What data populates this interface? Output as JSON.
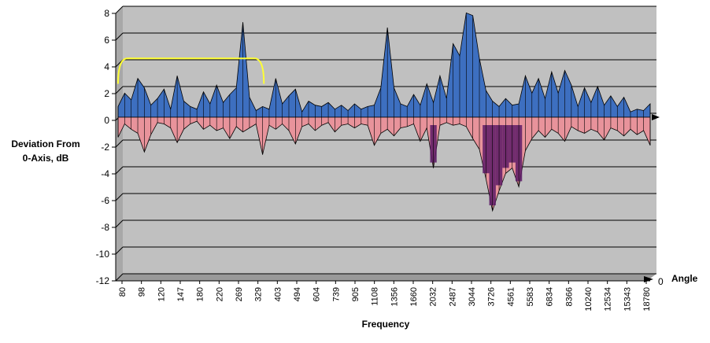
{
  "chart_data": {
    "type": "area",
    "title": "",
    "xlabel": "Frequency",
    "ylabel_lines": [
      "Deviation From",
      "0-Axis, dB"
    ],
    "zlabel": "Angle",
    "z_tick": "0",
    "ylim": [
      -12,
      8
    ],
    "y_ticks": [
      8,
      6,
      4,
      2,
      0,
      -2,
      -4,
      -6,
      -8,
      -10,
      -12
    ],
    "x_tick_labels": [
      "80",
      "98",
      "120",
      "147",
      "180",
      "220",
      "269",
      "329",
      "403",
      "494",
      "604",
      "739",
      "905",
      "1108",
      "1356",
      "1660",
      "2032",
      "2487",
      "3044",
      "3726",
      "4561",
      "5583",
      "6834",
      "8366",
      "10240",
      "12534",
      "15343",
      "18780"
    ],
    "grid": true,
    "legend": "none",
    "colors": {
      "wall": "#c0c0c0",
      "floor": "#999999",
      "positive": "#3d6fc0",
      "negative": "#e8939b",
      "deep_negative": "#5c1a66",
      "outline": "#000000",
      "highlight_bracket": "#ffff33"
    },
    "highlight_bracket": {
      "x_start": "80",
      "x_end": "329",
      "y": 4.4
    },
    "series": [
      {
        "x": [
          "80",
          "86",
          "92",
          "98",
          "105",
          "112",
          "120",
          "129",
          "138",
          "147",
          "158",
          "169",
          "180",
          "194",
          "207",
          "220",
          "236",
          "252",
          "269",
          "289",
          "309",
          "329",
          "354",
          "378",
          "403",
          "433",
          "463",
          "494",
          "531",
          "567",
          "604",
          "649",
          "694",
          "739",
          "794",
          "850",
          "905",
          "973",
          "1040",
          "1108",
          "1191",
          "1273",
          "1356",
          "1457",
          "1559",
          "1660",
          "1784",
          "1908",
          "2032",
          "2184",
          "2335",
          "2487",
          "2673",
          "2858",
          "3044",
          "3271",
          "3499",
          "3726",
          "4004",
          "4283",
          "4561",
          "4902",
          "5242",
          "5583",
          "6000",
          "6417",
          "6834",
          "7345",
          "7855",
          "8366",
          "8991",
          "9615",
          "10240",
          "11005",
          "11769",
          "12534",
          "13470",
          "14407",
          "15343",
          "16489",
          "17634",
          "18780"
        ],
        "max": [
          0.8,
          1.8,
          1.3,
          2.9,
          2.2,
          0.9,
          1.4,
          2.1,
          0.6,
          3.1,
          1.2,
          0.8,
          0.6,
          1.9,
          1.0,
          2.4,
          1.1,
          1.7,
          2.2,
          7.1,
          1.5,
          0.5,
          0.8,
          0.6,
          2.9,
          1.0,
          1.6,
          2.1,
          0.4,
          1.2,
          0.9,
          0.8,
          1.1,
          0.6,
          0.9,
          0.5,
          1.0,
          0.6,
          0.8,
          0.9,
          2.2,
          6.7,
          2.2,
          1.0,
          0.8,
          1.7,
          0.9,
          2.5,
          1.1,
          3.1,
          1.4,
          5.5,
          4.6,
          7.8,
          7.6,
          4.4,
          2.0,
          1.2,
          0.8,
          1.4,
          0.9,
          1.0,
          3.1,
          1.8,
          2.9,
          1.4,
          3.4,
          1.8,
          3.5,
          2.4,
          0.8,
          2.2,
          1.1,
          2.3,
          0.9,
          1.6,
          0.8,
          1.5,
          0.4,
          0.6,
          0.5,
          1.0
        ],
        "min": [
          -1.5,
          -0.5,
          -0.9,
          -1.2,
          -2.6,
          -1.3,
          -0.4,
          -0.5,
          -0.8,
          -1.9,
          -0.9,
          -0.5,
          -0.3,
          -0.9,
          -0.6,
          -1.0,
          -0.8,
          -1.6,
          -0.7,
          -1.1,
          -0.8,
          -0.5,
          -2.8,
          -0.6,
          -0.9,
          -0.5,
          -1.0,
          -2.0,
          -0.7,
          -0.5,
          -1.0,
          -0.6,
          -0.4,
          -1.1,
          -0.6,
          -0.5,
          -0.8,
          -0.5,
          -0.6,
          -2.1,
          -1.2,
          -0.9,
          -1.4,
          -0.8,
          -0.7,
          -0.5,
          -1.8,
          -0.8,
          -3.8,
          -0.6,
          -0.4,
          -0.6,
          -0.5,
          -0.7,
          -1.6,
          -2.4,
          -4.6,
          -7.0,
          -5.5,
          -4.2,
          -3.8,
          -5.2,
          -2.5,
          -1.6,
          -1.0,
          -1.5,
          -0.9,
          -1.2,
          -1.8,
          -0.7,
          -1.0,
          -1.2,
          -0.9,
          -1.1,
          -1.7,
          -0.8,
          -1.0,
          -1.4,
          -0.9,
          -1.3,
          -1.0,
          -2.1
        ]
      }
    ]
  }
}
